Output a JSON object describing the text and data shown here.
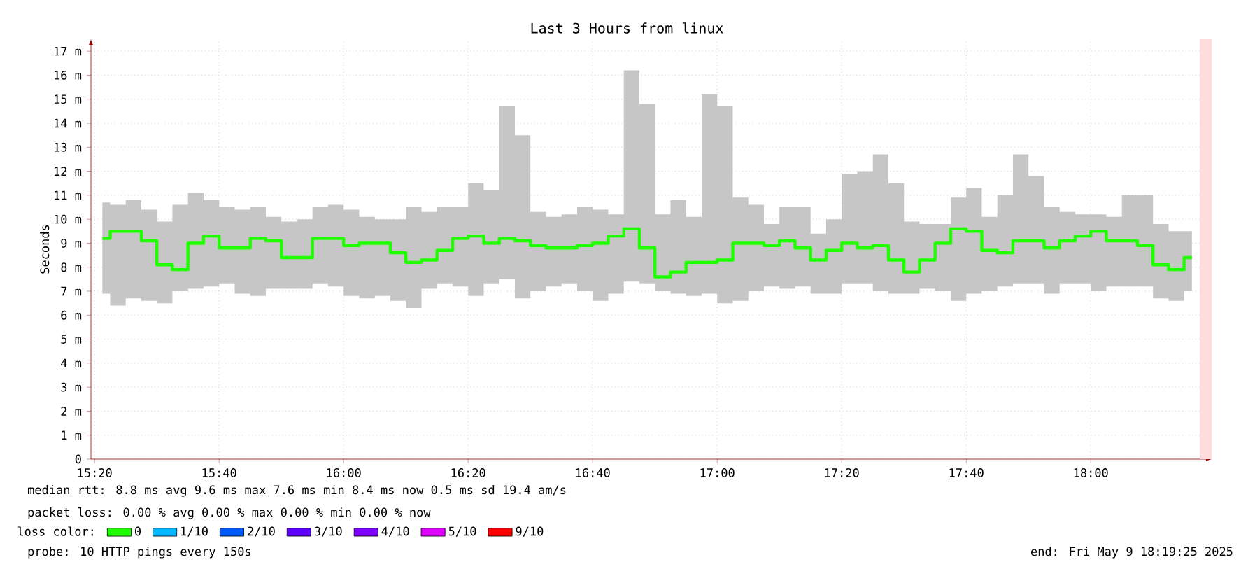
{
  "chart_data": {
    "type": "step",
    "title": "Last 3 Hours from linux",
    "ylabel": "Seconds",
    "legend_title": "loss color:",
    "legend": "bottom",
    "grid": true,
    "marker": "none",
    "line_style": "solid",
    "x": [
      15.3542,
      15.3958,
      15.4375,
      15.4792,
      15.5208,
      15.5625,
      15.6042,
      15.6458,
      15.6875,
      15.7292,
      15.7708,
      15.8125,
      15.8542,
      15.8958,
      15.9375,
      15.9792,
      16.0208,
      16.0625,
      16.1042,
      16.1458,
      16.1875,
      16.2292,
      16.2708,
      16.3125,
      16.3542,
      16.3958,
      16.4375,
      16.4792,
      16.5208,
      16.5625,
      16.6042,
      16.6458,
      16.6875,
      16.7292,
      16.7708,
      16.8125,
      16.8542,
      16.8958,
      16.9375,
      16.9792,
      17.0208,
      17.0625,
      17.1042,
      17.1458,
      17.1875,
      17.2292,
      17.2708,
      17.3125,
      17.3542,
      17.3958,
      17.4375,
      17.4792,
      17.5208,
      17.5625,
      17.6042,
      17.6458,
      17.6875,
      17.7292,
      17.7708,
      17.8125,
      17.8542,
      17.8958,
      17.9375,
      17.9792,
      18.0208,
      18.0625,
      18.1042,
      18.1458,
      18.1875,
      18.2292,
      18.2708
    ],
    "series": [
      {
        "name": "0",
        "color": "#20ff00",
        "values": [
          9.2,
          9.5,
          9.5,
          9.1,
          8.1,
          7.9,
          9.0,
          9.3,
          8.8,
          8.8,
          9.2,
          9.1,
          8.4,
          8.4,
          9.2,
          9.2,
          8.9,
          9.0,
          9.0,
          8.6,
          8.2,
          8.3,
          8.7,
          9.2,
          9.3,
          9.0,
          9.2,
          9.1,
          8.9,
          8.8,
          8.8,
          8.9,
          9.0,
          9.3,
          9.6,
          8.8,
          7.6,
          7.8,
          8.2,
          8.2,
          8.3,
          9.0,
          9.0,
          8.9,
          9.1,
          8.8,
          8.3,
          8.7,
          9.0,
          8.8,
          8.9,
          8.3,
          7.8,
          8.3,
          9.0,
          9.6,
          9.5,
          8.7,
          8.6,
          9.1,
          9.1,
          8.8,
          9.1,
          9.3,
          9.5,
          9.1,
          9.1,
          8.9,
          8.1,
          7.9,
          8.4
        ],
        "upper": [
          10.7,
          10.6,
          10.8,
          10.4,
          9.9,
          10.6,
          11.1,
          10.8,
          10.5,
          10.4,
          10.5,
          10.1,
          9.9,
          10.0,
          10.5,
          10.6,
          10.4,
          10.1,
          10.0,
          10.0,
          10.5,
          10.3,
          10.5,
          10.5,
          11.5,
          11.2,
          14.7,
          13.5,
          10.3,
          10.1,
          10.2,
          10.5,
          10.4,
          10.2,
          16.2,
          14.8,
          10.2,
          10.8,
          10.1,
          15.2,
          14.7,
          10.9,
          10.6,
          9.8,
          10.5,
          10.5,
          9.4,
          10.0,
          11.9,
          12.0,
          12.7,
          11.5,
          9.9,
          9.8,
          9.8,
          10.9,
          11.3,
          10.1,
          11.0,
          12.7,
          11.8,
          10.5,
          10.3,
          10.2,
          10.2,
          10.1,
          11.0,
          11.0,
          9.8,
          9.5,
          9.5
        ],
        "lower": [
          6.9,
          6.4,
          6.7,
          6.6,
          6.5,
          7.0,
          7.1,
          7.2,
          7.3,
          6.9,
          6.8,
          7.1,
          7.1,
          7.1,
          7.3,
          7.2,
          6.8,
          6.7,
          6.8,
          6.6,
          6.3,
          7.1,
          7.3,
          7.2,
          6.8,
          7.3,
          7.5,
          6.7,
          7.0,
          7.2,
          7.3,
          7.0,
          6.6,
          6.9,
          7.4,
          7.3,
          7.0,
          6.9,
          6.8,
          6.9,
          6.5,
          6.6,
          7.0,
          7.2,
          7.1,
          7.2,
          6.9,
          6.9,
          7.3,
          7.3,
          7.0,
          6.9,
          6.9,
          7.1,
          7.0,
          6.6,
          6.9,
          7.0,
          7.2,
          7.3,
          7.3,
          6.9,
          7.3,
          7.3,
          7.0,
          7.2,
          7.2,
          7.2,
          6.7,
          6.6,
          7.0
        ]
      },
      {
        "name": "1/10",
        "color": "#00b8ff",
        "values": [
          null,
          null,
          null,
          null,
          null,
          null,
          null,
          null,
          null,
          null,
          null,
          null,
          null,
          null,
          null,
          null,
          null,
          null,
          null,
          null,
          null,
          null,
          null,
          null,
          null,
          null,
          null,
          null,
          null,
          null,
          null,
          null,
          null,
          null,
          null,
          null,
          null,
          null,
          null,
          null,
          null,
          null,
          null,
          null,
          null,
          null,
          null,
          null,
          null,
          null,
          null,
          null,
          null,
          null,
          null,
          null,
          null,
          null,
          null,
          null,
          null,
          null,
          null,
          null,
          null,
          null,
          null,
          null,
          null,
          null,
          null
        ]
      },
      {
        "name": "2/10",
        "color": "#0059ff",
        "values": [
          null,
          null,
          null,
          null,
          null,
          null,
          null,
          null,
          null,
          null,
          null,
          null,
          null,
          null,
          null,
          null,
          null,
          null,
          null,
          null,
          null,
          null,
          null,
          null,
          null,
          null,
          null,
          null,
          null,
          null,
          null,
          null,
          null,
          null,
          null,
          null,
          null,
          null,
          null,
          null,
          null,
          null,
          null,
          null,
          null,
          null,
          null,
          null,
          null,
          null,
          null,
          null,
          null,
          null,
          null,
          null,
          null,
          null,
          null,
          null,
          null,
          null,
          null,
          null,
          null,
          null,
          null,
          null,
          null,
          null,
          null
        ]
      },
      {
        "name": "3/10",
        "color": "#5e00ff",
        "values": [
          null,
          null,
          null,
          null,
          null,
          null,
          null,
          null,
          null,
          null,
          null,
          null,
          null,
          null,
          null,
          null,
          null,
          null,
          null,
          null,
          null,
          null,
          null,
          null,
          null,
          null,
          null,
          null,
          null,
          null,
          null,
          null,
          null,
          null,
          null,
          null,
          null,
          null,
          null,
          null,
          null,
          null,
          null,
          null,
          null,
          null,
          null,
          null,
          null,
          null,
          null,
          null,
          null,
          null,
          null,
          null,
          null,
          null,
          null,
          null,
          null,
          null,
          null,
          null,
          null,
          null,
          null,
          null,
          null,
          null,
          null
        ]
      },
      {
        "name": "4/10",
        "color": "#7e00ff",
        "values": [
          null,
          null,
          null,
          null,
          null,
          null,
          null,
          null,
          null,
          null,
          null,
          null,
          null,
          null,
          null,
          null,
          null,
          null,
          null,
          null,
          null,
          null,
          null,
          null,
          null,
          null,
          null,
          null,
          null,
          null,
          null,
          null,
          null,
          null,
          null,
          null,
          null,
          null,
          null,
          null,
          null,
          null,
          null,
          null,
          null,
          null,
          null,
          null,
          null,
          null,
          null,
          null,
          null,
          null,
          null,
          null,
          null,
          null,
          null,
          null,
          null,
          null,
          null,
          null,
          null,
          null,
          null,
          null,
          null,
          null,
          null
        ]
      },
      {
        "name": "5/10",
        "color": "#dd00ff",
        "values": [
          null,
          null,
          null,
          null,
          null,
          null,
          null,
          null,
          null,
          null,
          null,
          null,
          null,
          null,
          null,
          null,
          null,
          null,
          null,
          null,
          null,
          null,
          null,
          null,
          null,
          null,
          null,
          null,
          null,
          null,
          null,
          null,
          null,
          null,
          null,
          null,
          null,
          null,
          null,
          null,
          null,
          null,
          null,
          null,
          null,
          null,
          null,
          null,
          null,
          null,
          null,
          null,
          null,
          null,
          null,
          null,
          null,
          null,
          null,
          null,
          null,
          null,
          null,
          null,
          null,
          null,
          null,
          null,
          null,
          null,
          null
        ]
      },
      {
        "name": "9/10",
        "color": "#ff0000",
        "values": [
          null,
          null,
          null,
          null,
          null,
          null,
          null,
          null,
          null,
          null,
          null,
          null,
          null,
          null,
          null,
          null,
          null,
          null,
          null,
          null,
          null,
          null,
          null,
          null,
          null,
          null,
          null,
          null,
          null,
          null,
          null,
          null,
          null,
          null,
          null,
          null,
          null,
          null,
          null,
          null,
          null,
          null,
          null,
          null,
          null,
          null,
          null,
          null,
          null,
          null,
          null,
          null,
          null,
          null,
          null,
          null,
          null,
          null,
          null,
          null,
          null,
          null,
          null,
          null,
          null,
          null,
          null,
          null,
          null,
          null,
          null
        ]
      }
    ],
    "bands": [
      {
        "axis": "x",
        "from": 18.2917,
        "to": 18.3236,
        "color": "#ffdddd"
      }
    ],
    "xlim": [
      15.3236,
      18.3236
    ],
    "xticks": [
      {
        "value": 15.3333,
        "label": "15:20"
      },
      {
        "value": 15.6667,
        "label": "15:40"
      },
      {
        "value": 16.0,
        "label": "16:00"
      },
      {
        "value": 16.3333,
        "label": "16:20"
      },
      {
        "value": 16.6667,
        "label": "16:40"
      },
      {
        "value": 17.0,
        "label": "17:00"
      },
      {
        "value": 17.3333,
        "label": "17:20"
      },
      {
        "value": 17.6667,
        "label": "17:40"
      },
      {
        "value": 18.0,
        "label": "18:00"
      }
    ],
    "ylim": [
      0,
      17.5
    ],
    "yticks": [
      0,
      {
        "value": 1,
        "label": "1 m"
      },
      {
        "value": 2,
        "label": "2 m"
      },
      {
        "value": 3,
        "label": "3 m"
      },
      {
        "value": 4,
        "label": "4 m"
      },
      {
        "value": 5,
        "label": "5 m"
      },
      {
        "value": 6,
        "label": "6 m"
      },
      {
        "value": 7,
        "label": "7 m"
      },
      {
        "value": 8,
        "label": "8 m"
      },
      {
        "value": 9,
        "label": "9 m"
      },
      {
        "value": 10,
        "label": "10 m"
      },
      {
        "value": 11,
        "label": "11 m"
      },
      {
        "value": 12,
        "label": "12 m"
      },
      {
        "value": 13,
        "label": "13 m"
      },
      {
        "value": 14,
        "label": "14 m"
      },
      {
        "value": 15,
        "label": "15 m"
      },
      {
        "value": 16,
        "label": "16 m"
      },
      {
        "value": 17,
        "label": "17 m"
      }
    ],
    "annotations": [
      "median rtt: 8.8 ms avg 9.6 ms max 7.6 ms min 8.4 ms now 0.5 ms sd 19.4 am/s",
      "packet loss: 0.00 % avg 0.00 % max 0.00 % min 0.00 % now",
      "probe: 10 HTTP pings every 150s",
      "end: Fri May 9 18:19:25 2025"
    ]
  }
}
